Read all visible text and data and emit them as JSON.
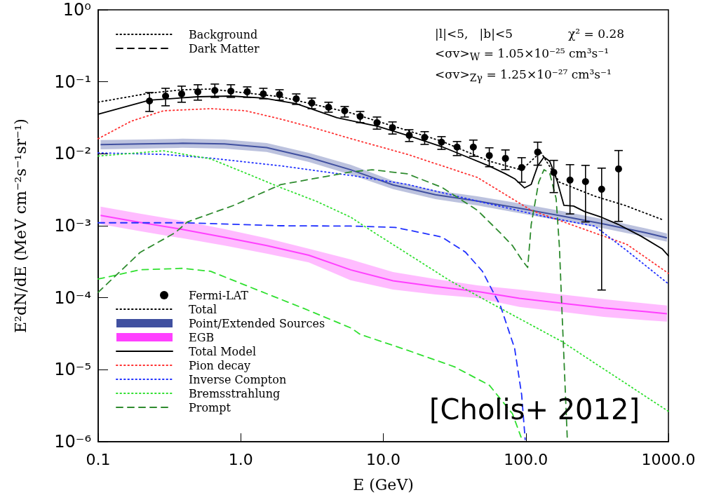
{
  "chart_data": {
    "type": "line",
    "xlabel": "E (GeV)",
    "ylabel": "E²dN/dE (MeV cm⁻²s⁻¹sr⁻¹)",
    "log": "xy",
    "legend": "left",
    "xlim": [
      0.1,
      1000
    ],
    "xticks": [
      {
        "value": 0.1,
        "label": "0.1"
      },
      {
        "value": 1,
        "label": "1.0"
      },
      {
        "value": 10,
        "label": "10.0"
      },
      {
        "value": 100,
        "label": "100.0"
      },
      {
        "value": 1000,
        "label": "1000.0"
      }
    ],
    "ylim": [
      1e-06,
      1
    ],
    "yticks": [
      {
        "value": 1,
        "label": "10⁰"
      },
      {
        "value": 0.1,
        "label": "10⁻¹"
      },
      {
        "value": 0.01,
        "label": "10⁻²"
      },
      {
        "value": 0.001,
        "label": "10⁻³"
      },
      {
        "value": 0.0001,
        "label": "10⁻⁴"
      },
      {
        "value": 1e-05,
        "label": "10⁻⁵"
      },
      {
        "value": 1e-06,
        "label": "10⁻⁶"
      }
    ],
    "annotations": [
      "|l|<5,   |b|<5",
      "χ² = 0.28",
      "<σv>$_{W}$ = 1.05×10⁻²⁵ cm³s⁻¹",
      "<σv>$_{Zγ}$ = 1.25×10⁻²⁷ cm³s⁻¹",
      "[Cholis+ 2012]"
    ],
    "series": [
      {
        "name": "Background",
        "color": "#000000",
        "line_style": "dotted"
      },
      {
        "name": "Dark Matter",
        "color": "#000000",
        "line_style": "dashed"
      },
      {
        "name": "Fermi-LAT",
        "type": "scatter",
        "color": "#000000",
        "marker": "circle",
        "x": [
          0.229,
          0.297,
          0.385,
          0.5,
          0.658,
          0.853,
          1.11,
          1.44,
          1.87,
          2.45,
          3.15,
          4.13,
          5.36,
          6.88,
          9.03,
          11.6,
          15.2,
          19.5,
          25.6,
          32.9,
          42.8,
          55.4,
          71.9,
          93.4,
          121,
          157,
          204,
          262,
          340,
          447
        ],
        "values": [
          0.0542,
          0.0634,
          0.0679,
          0.0726,
          0.0759,
          0.0742,
          0.0726,
          0.0679,
          0.0664,
          0.058,
          0.0507,
          0.0443,
          0.0396,
          0.0331,
          0.0271,
          0.0231,
          0.0181,
          0.0169,
          0.0145,
          0.0124,
          0.0124,
          0.00944,
          0.00863,
          0.00645,
          0.01055,
          0.00551,
          0.00431,
          0.00411,
          0.00322,
          0.00616
        ],
        "errors": [
          [
            0.0387,
            0.071
          ],
          [
            0.0464,
            0.0812
          ],
          [
            0.052,
            0.087
          ],
          [
            0.0556,
            0.091
          ],
          [
            0.0607,
            0.093
          ],
          [
            0.0607,
            0.091
          ],
          [
            0.0607,
            0.085
          ],
          [
            0.058,
            0.0812
          ],
          [
            0.0556,
            0.0776
          ],
          [
            0.0485,
            0.0679
          ],
          [
            0.0423,
            0.0594
          ],
          [
            0.0378,
            0.052
          ],
          [
            0.0324,
            0.0454
          ],
          [
            0.0271,
            0.0387
          ],
          [
            0.022,
            0.0324
          ],
          [
            0.0188,
            0.0277
          ],
          [
            0.0148,
            0.0216
          ],
          [
            0.0135,
            0.0203
          ],
          [
            0.0115,
            0.0173
          ],
          [
            0.00944,
            0.0148
          ],
          [
            0.00921,
            0.0155
          ],
          [
            0.00661,
            0.0121
          ],
          [
            0.00602,
            0.0113
          ],
          [
            0.00403,
            0.00882
          ],
          [
            0.00694,
            0.0145
          ],
          [
            0.00289,
            0.0081
          ],
          [
            0.00146,
            0.00706
          ],
          [
            0.00113,
            0.0069
          ],
          [
            0.000128,
            0.00632
          ],
          [
            0.00115,
            0.0111
          ]
        ]
      },
      {
        "name": "Total",
        "color": "#000000",
        "line_style": "dotted",
        "x": [
          0.1,
          0.229,
          0.39,
          0.61,
          1.9,
          5.9,
          25.6,
          55.4,
          93.4,
          127,
          172,
          304,
          495,
          904
        ],
        "values": [
          0.0522,
          0.0695,
          0.0775,
          0.0793,
          0.062,
          0.037,
          0.015,
          0.00789,
          0.00595,
          0.0106,
          0.00403,
          0.00258,
          0.00192,
          0.00122
        ]
      },
      {
        "name": "Point/Extended Sources",
        "color": "#4050a0",
        "x": [
          0.104,
          0.197,
          0.39,
          0.77,
          1.52,
          3.0,
          5.9,
          11.7,
          23.2,
          45.7,
          90,
          178,
          352,
          695,
          977
        ],
        "values": [
          0.0134,
          0.0137,
          0.014,
          0.0137,
          0.0122,
          0.0089,
          0.006,
          0.0037,
          0.0027,
          0.0022,
          0.00175,
          0.00137,
          0.00106,
          0.0008,
          0.00068
        ],
        "lower": [
          0.0115,
          0.0118,
          0.0121,
          0.0118,
          0.0106,
          0.0077,
          0.00515,
          0.00322,
          0.00235,
          0.00192,
          0.0015,
          0.00117,
          0.00092,
          0.0007,
          0.0006
        ],
        "upper": [
          0.0155,
          0.0158,
          0.0162,
          0.0158,
          0.0141,
          0.0103,
          0.00705,
          0.00421,
          0.00308,
          0.00257,
          0.00205,
          0.0016,
          0.00123,
          0.00092,
          0.00078
        ]
      },
      {
        "name": "EGB",
        "color": "#ff40ff",
        "x": [
          0.104,
          0.197,
          0.39,
          0.77,
          1.52,
          3.0,
          5.9,
          11.7,
          23.2,
          45.7,
          90,
          178,
          352,
          695,
          977
        ],
        "values": [
          0.00139,
          0.00111,
          0.00089,
          0.00069,
          0.00053,
          0.00039,
          0.000244,
          0.000172,
          0.000143,
          0.000122,
          9.8e-05,
          8.4e-05,
          7.2e-05,
          6.4e-05,
          6e-05
        ],
        "lower": [
          0.00105,
          0.00084,
          0.00067,
          0.00053,
          0.00041,
          0.00031,
          0.000175,
          0.00013,
          0.000111,
          9.95e-05,
          7.44e-05,
          6.36e-05,
          5.43e-05,
          4.86e-05,
          4.65e-05
        ],
        "upper": [
          0.00184,
          0.00147,
          0.00117,
          0.0009,
          0.00067,
          0.00048,
          0.00034,
          0.000228,
          0.000182,
          0.000149,
          0.00013,
          0.000111,
          9.52e-05,
          8.32e-05,
          7.78e-05
        ]
      },
      {
        "name": "Total Model",
        "color": "#000000",
        "line_style": "solid",
        "x": [
          0.1,
          0.229,
          0.5,
          0.853,
          1.44,
          2.45,
          4.73,
          9.03,
          15.2,
          25.6,
          32.9,
          55.4,
          71.9,
          83.4,
          97.7,
          109,
          121,
          134,
          147,
          165,
          185,
          216,
          259,
          340,
          442,
          643,
          904,
          1000
        ],
        "values": [
          0.0354,
          0.0556,
          0.062,
          0.0634,
          0.0593,
          0.0496,
          0.0317,
          0.0242,
          0.0177,
          0.0126,
          0.0103,
          0.00675,
          0.00527,
          0.0045,
          0.00336,
          0.00376,
          0.00675,
          0.00902,
          0.00789,
          0.00431,
          0.00192,
          0.00188,
          0.00157,
          0.00131,
          0.00105,
          0.000716,
          0.000478,
          0.000382
        ]
      },
      {
        "name": "Pion decay",
        "color": "#ff3030",
        "line_style": "dotted",
        "x": [
          0.1,
          0.17,
          0.287,
          0.614,
          1.08,
          1.9,
          3.37,
          5.93,
          14.7,
          45.7,
          109,
          207,
          512,
          1000
        ],
        "values": [
          0.0162,
          0.0283,
          0.0396,
          0.0424,
          0.0396,
          0.0304,
          0.0225,
          0.0162,
          0.00984,
          0.00469,
          0.00164,
          0.00104,
          0.00055,
          0.000218
        ]
      },
      {
        "name": "Inverse Compton",
        "color": "#2030ff",
        "line_style": "dotted",
        "x": [
          0.1,
          0.287,
          0.614,
          1.9,
          5.93,
          14.7,
          45.7,
          142,
          304,
          512,
          1000
        ],
        "values": [
          0.0103,
          0.0098,
          0.0087,
          0.0068,
          0.005,
          0.00376,
          0.0022,
          0.00131,
          0.00099,
          0.00045,
          0.000156
        ]
      },
      {
        "name": "Bremsstrahlung",
        "color": "#30e030",
        "line_style": "dotted",
        "x": [
          0.1,
          0.287,
          0.614,
          1.08,
          1.9,
          3.37,
          5.93,
          8.34,
          29,
          66.5,
          178,
          1000
        ],
        "values": [
          0.0093,
          0.011,
          0.0085,
          0.0054,
          0.0034,
          0.0022,
          0.00131,
          0.00084,
          0.000175,
          7.1e-05,
          2.48e-05,
          2.64e-06
        ]
      },
      {
        "color": "#2030ff",
        "line_style": "dashed",
        "x": [
          0.1,
          0.42,
          1.9,
          5.9,
          12.1,
          25.6,
          37.7,
          49.5,
          66.5,
          83.4,
          93.4,
          98.9
        ],
        "values": [
          0.0011,
          0.0011,
          0.001,
          0.00099,
          0.00095,
          0.0007,
          0.00043,
          0.000234,
          7.6e-05,
          1.98e-05,
          4.5e-06,
          1.07e-06
        ]
      },
      {
        "color": "#30e030",
        "line_style": "dashed",
        "x": [
          0.1,
          0.197,
          0.39,
          0.614,
          1.31,
          2.77,
          5.93,
          6.88,
          14.7,
          31.5,
          55.4,
          80.5,
          92.5
        ],
        "values": [
          0.000182,
          0.000245,
          0.000256,
          0.000233,
          0.000128,
          7.1e-05,
          3.8e-05,
          3.1e-05,
          1.87e-05,
          1.1e-05,
          6.1e-06,
          2.45e-06,
          1.16e-06
        ]
      },
      {
        "name": "Prompt",
        "color": "#2e8b2e",
        "line_style": "dashed",
        "x": [
          0.1,
          0.197,
          0.348,
          0.422,
          0.893,
          1.9,
          5.93,
          8.34,
          14.7,
          25.6,
          45.7,
          66.5,
          80.5,
          93.4,
          103,
          109,
          123,
          134,
          147,
          163,
          172,
          178,
          195
        ],
        "values": [
          0.000119,
          0.000427,
          0.000805,
          0.00113,
          0.00192,
          0.00372,
          0.0056,
          0.006,
          0.00527,
          0.00344,
          0.00164,
          0.000788,
          0.000531,
          0.000339,
          0.000263,
          0.00104,
          0.00403,
          0.00601,
          0.00536,
          0.00239,
          0.000502,
          9e-05,
          1.16e-06
        ]
      }
    ]
  }
}
